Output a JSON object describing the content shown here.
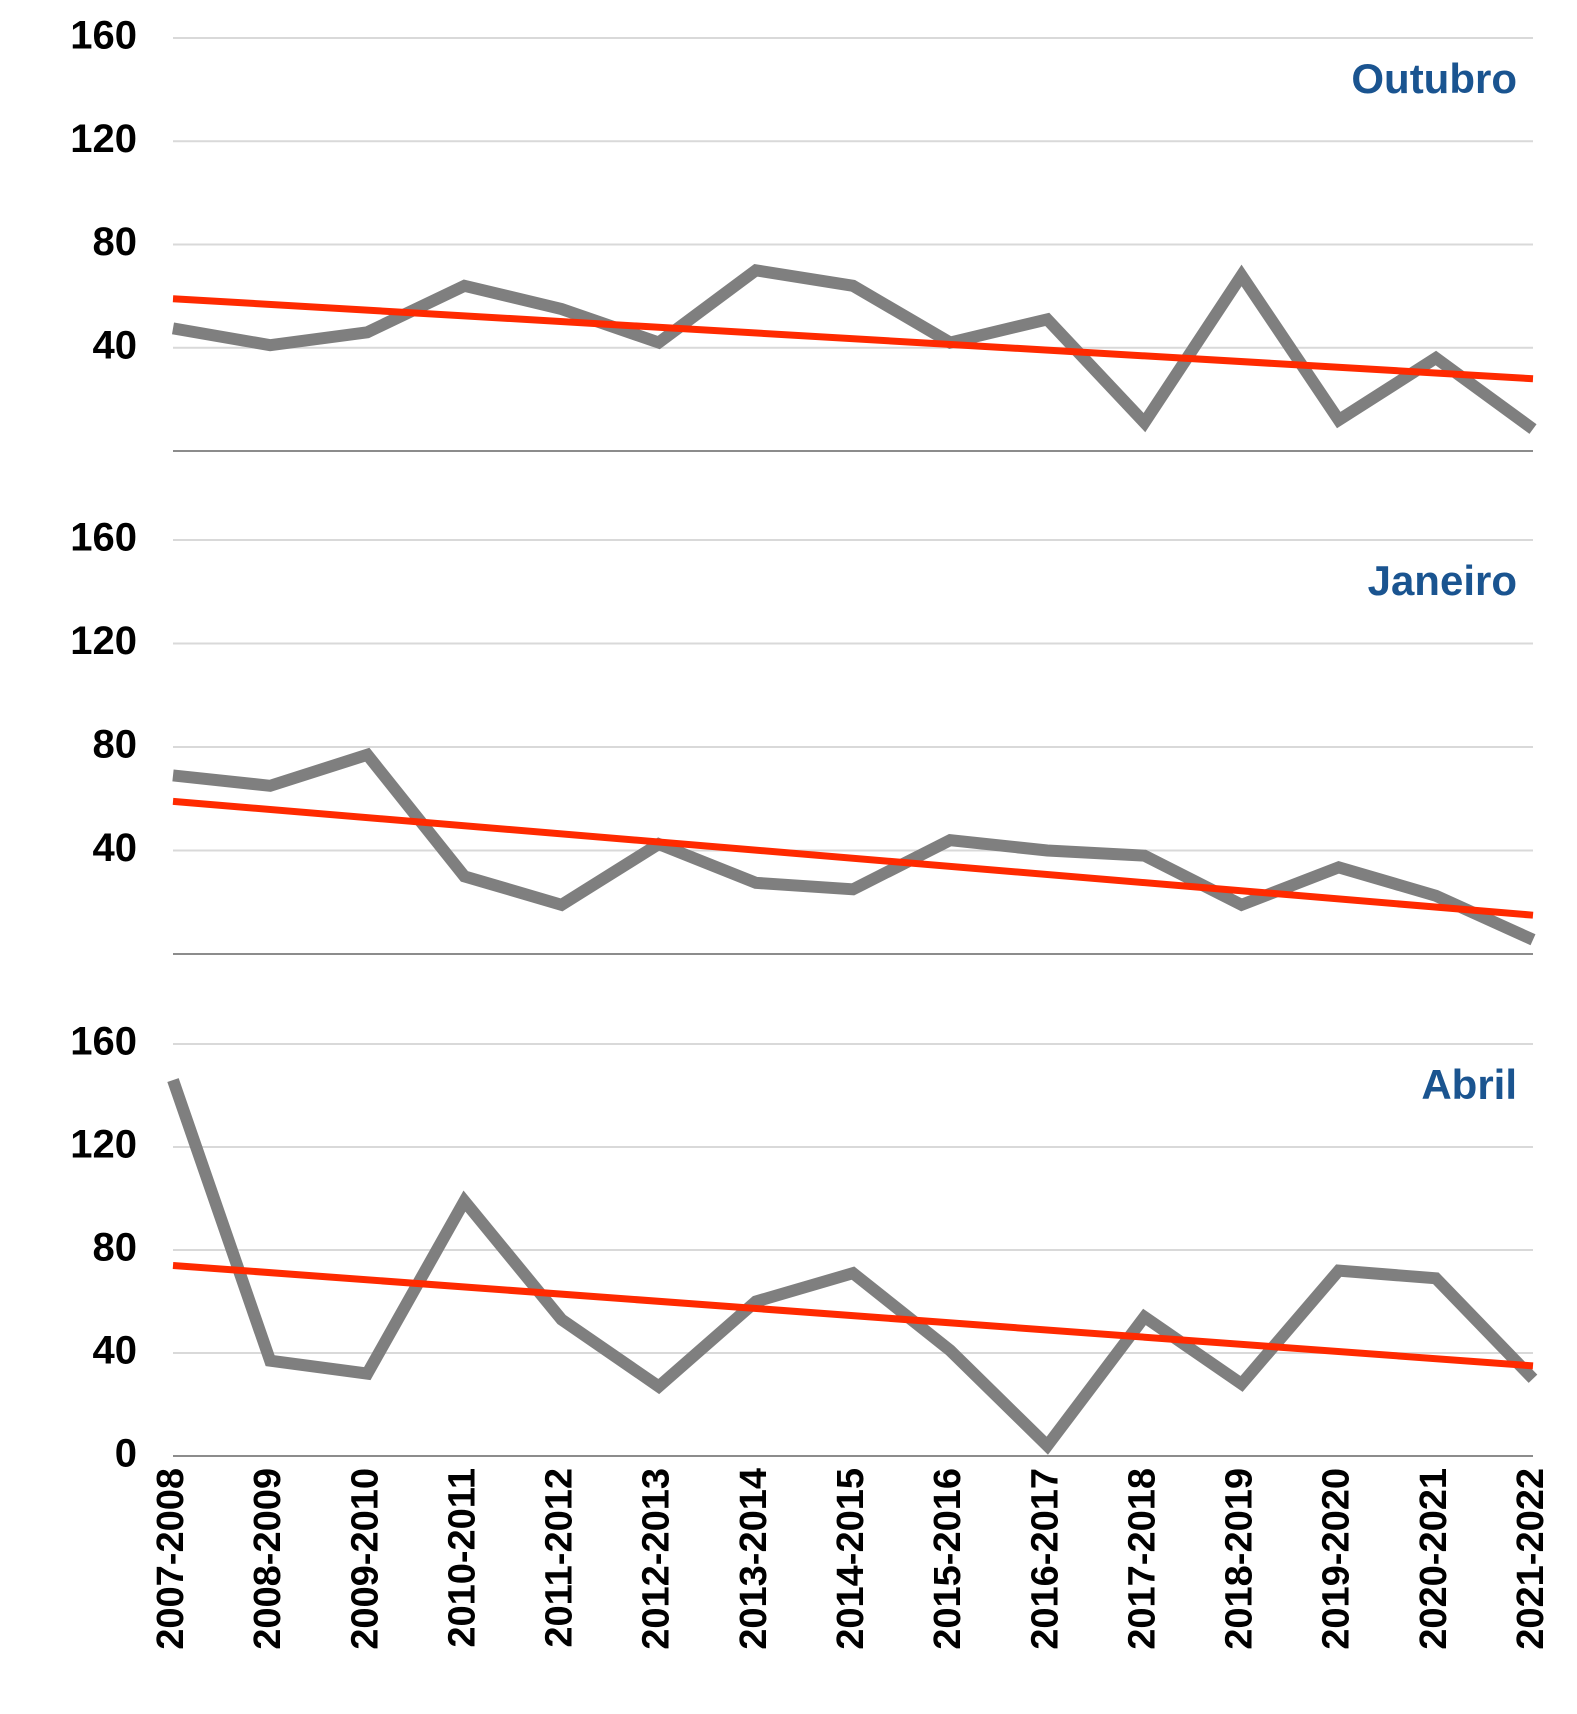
{
  "chart_data": [
    {
      "type": "line",
      "label": "Outubro",
      "ylim": [
        0,
        160
      ],
      "yticks": [
        40,
        80,
        120,
        160
      ],
      "grid": true,
      "series": [
        {
          "color": "#7f7f7f",
          "values": [
            47.5,
            41,
            46,
            64,
            55,
            42,
            70,
            64,
            42,
            51,
            11,
            68,
            12,
            36,
            8.5
          ]
        }
      ],
      "trend": {
        "color": "#ff2a00",
        "values": [
          59,
          28
        ]
      }
    },
    {
      "type": "line",
      "label": "Janeiro",
      "ylim": [
        0,
        160
      ],
      "yticks": [
        40,
        80,
        120,
        160
      ],
      "grid": true,
      "series": [
        {
          "color": "#7f7f7f",
          "values": [
            69,
            65,
            77,
            30,
            19,
            42.5,
            27.5,
            25,
            44,
            40,
            38,
            19,
            33.5,
            22.5,
            5.5
          ]
        }
      ],
      "trend": {
        "color": "#ff2a00",
        "values": [
          59,
          15
        ]
      }
    },
    {
      "type": "line",
      "label": "Abril",
      "ylim": [
        0,
        160
      ],
      "yticks": [
        0,
        40,
        80,
        120,
        160
      ],
      "grid": true,
      "categories": [
        "2007-2008",
        "2008-2009",
        "2009-2010",
        "2010-2011",
        "2011-2012",
        "2012-2013",
        "2013-2014",
        "2014-2015",
        "2015-2016",
        "2016-2017",
        "2017-2018",
        "2018-2019",
        "2019-2020",
        "2020-2021",
        "2021-2022"
      ],
      "series": [
        {
          "color": "#7f7f7f",
          "values": [
            146,
            37,
            32,
            99,
            53,
            27,
            60,
            71,
            41,
            4,
            54,
            28,
            72,
            69,
            30
          ]
        }
      ],
      "trend": {
        "color": "#ff2a00",
        "values": [
          74,
          35
        ]
      }
    }
  ]
}
